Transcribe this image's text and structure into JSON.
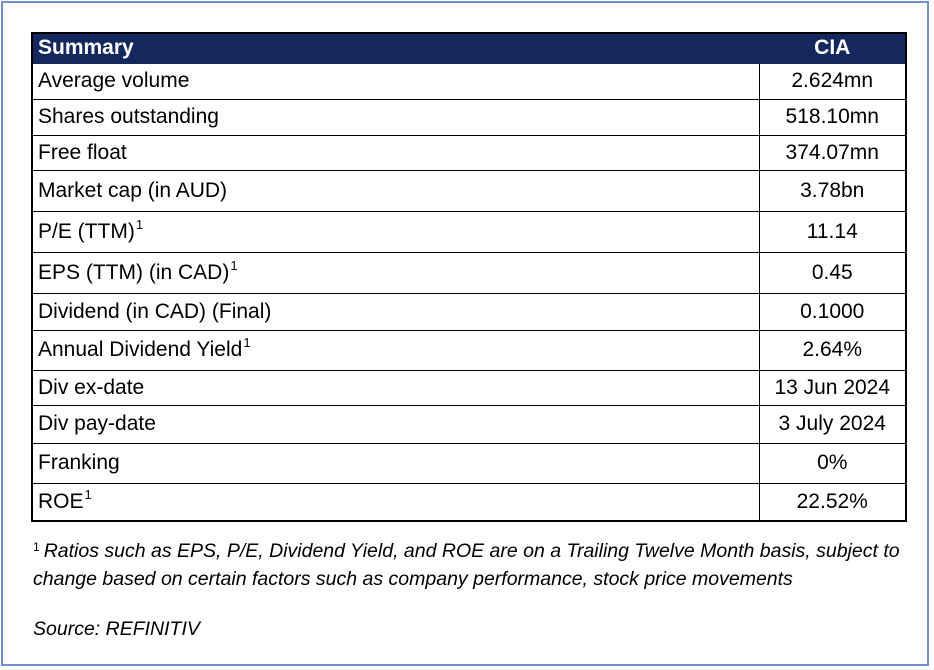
{
  "table": {
    "header_label": "Summary",
    "header_value": "CIA",
    "rows": [
      {
        "label": "Average volume",
        "sup": "",
        "value": "2.624mn"
      },
      {
        "label": "Shares outstanding",
        "sup": "",
        "value": "518.10mn"
      },
      {
        "label": "Free float",
        "sup": "",
        "value": "374.07mn"
      },
      {
        "label": "Market cap (in AUD)",
        "sup": "",
        "value": "3.78bn"
      },
      {
        "label": "P/E (TTM)",
        "sup": "1",
        "value": "11.14"
      },
      {
        "label": "EPS (TTM) (in CAD)",
        "sup": "1",
        "value": "0.45"
      },
      {
        "label": "Dividend (in CAD) (Final)",
        "sup": "",
        "value": "0.1000"
      },
      {
        "label": "Annual Dividend Yield",
        "sup": "1",
        "value": "2.64%"
      },
      {
        "label": "Div ex-date",
        "sup": "",
        "value": "13 Jun 2024"
      },
      {
        "label": "Div pay-date",
        "sup": "",
        "value": "3 July 2024"
      },
      {
        "label": "Franking",
        "sup": "",
        "value": "0%"
      },
      {
        "label": "ROE",
        "sup": "1",
        "value": "22.52%"
      }
    ]
  },
  "footnote": {
    "marker": "1",
    "text": "Ratios such as EPS, P/E, Dividend Yield, and ROE are on a Trailing Twelve Month basis, subject to change based on certain factors such as company performance, stock price movements"
  },
  "source": "Source: REFINITIV",
  "colors": {
    "header_bg": "#14285e",
    "header_text": "#ffffff",
    "frame_border": "#6f90c8"
  }
}
